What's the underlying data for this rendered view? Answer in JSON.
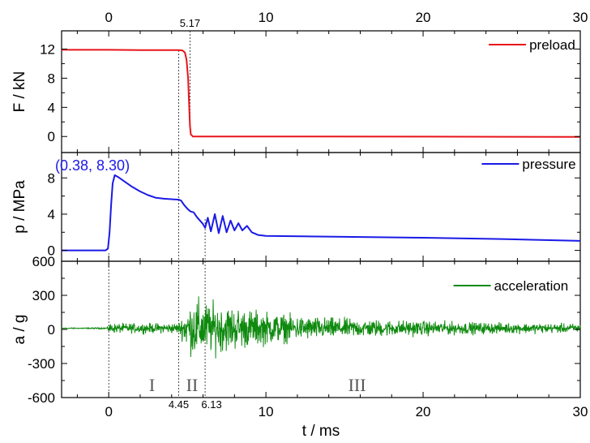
{
  "chart_data": {
    "type": "line",
    "x_axis": {
      "label": "t / ms",
      "range": [
        -3,
        30
      ],
      "bottom_ticks": [
        "0",
        "10",
        "20",
        "30"
      ],
      "top_ticks": [
        "0",
        "10",
        "20",
        "30"
      ],
      "tick_values": [
        0,
        10,
        20,
        30
      ]
    },
    "panels": [
      {
        "id": "preload",
        "ylabel": "F / kN",
        "ylim": [
          -2.2,
          14.5
        ],
        "yticks": [
          0,
          4,
          8,
          12
        ],
        "ytick_labels": [
          "0",
          "4",
          "8",
          "12"
        ],
        "legend": "preload",
        "color": "#e8141a",
        "series": {
          "name": "preload",
          "points": [
            [
              -3,
              11.9
            ],
            [
              0,
              11.9
            ],
            [
              2,
              11.85
            ],
            [
              4.45,
              11.85
            ],
            [
              4.7,
              11.8
            ],
            [
              4.85,
              11.5
            ],
            [
              4.95,
              10.5
            ],
            [
              5.05,
              8
            ],
            [
              5.12,
              4
            ],
            [
              5.17,
              1.5
            ],
            [
              5.22,
              0.3
            ],
            [
              5.35,
              0
            ],
            [
              6,
              0
            ],
            [
              10,
              0
            ],
            [
              20,
              -0.02
            ],
            [
              30,
              -0.05
            ]
          ]
        }
      },
      {
        "id": "pressure",
        "ylabel": "p / MPa",
        "ylim": [
          -1.2,
          10.8
        ],
        "yticks": [
          0,
          4,
          8
        ],
        "ytick_labels": [
          "0",
          "4",
          "8"
        ],
        "legend": "pressure",
        "color": "#1a1ae6",
        "annotation": "(0.38, 8.30)",
        "series": {
          "name": "pressure",
          "points": [
            [
              -3,
              0
            ],
            [
              -0.2,
              0
            ],
            [
              -0.05,
              0.2
            ],
            [
              0.05,
              2
            ],
            [
              0.15,
              5
            ],
            [
              0.25,
              7.4
            ],
            [
              0.38,
              8.3
            ],
            [
              0.6,
              8.1
            ],
            [
              1,
              7.6
            ],
            [
              1.5,
              7.0
            ],
            [
              2,
              6.5
            ],
            [
              2.5,
              6.1
            ],
            [
              3,
              5.8
            ],
            [
              3.5,
              5.7
            ],
            [
              4.45,
              5.6
            ],
            [
              4.6,
              5.5
            ],
            [
              4.8,
              5.0
            ],
            [
              5.0,
              4.6
            ],
            [
              5.2,
              4.3
            ],
            [
              5.4,
              4.2
            ],
            [
              5.6,
              3.7
            ],
            [
              5.8,
              3.3
            ],
            [
              6.0,
              2.9
            ],
            [
              6.13,
              2.5
            ],
            [
              6.3,
              3.6
            ],
            [
              6.5,
              2.1
            ],
            [
              6.75,
              4.0
            ],
            [
              7.0,
              1.9
            ],
            [
              7.25,
              3.8
            ],
            [
              7.5,
              2.0
            ],
            [
              7.75,
              3.3
            ],
            [
              8.0,
              2.2
            ],
            [
              8.25,
              3.0
            ],
            [
              8.5,
              2.2
            ],
            [
              8.8,
              2.7
            ],
            [
              9.1,
              2.0
            ],
            [
              9.5,
              1.7
            ],
            [
              10,
              1.6
            ],
            [
              15,
              1.5
            ],
            [
              20,
              1.4
            ],
            [
              25,
              1.25
            ],
            [
              30,
              1.05
            ]
          ]
        }
      },
      {
        "id": "acceleration",
        "ylabel": "a / g",
        "ylim": [
          -600,
          600
        ],
        "yticks": [
          -600,
          -300,
          0,
          300,
          600
        ],
        "ytick_labels": [
          "-600",
          "-300",
          "0",
          "300",
          "600"
        ],
        "legend": "acceleration",
        "color": "#0f8a0f",
        "series": {
          "name": "acceleration",
          "description_of_signal": "noisy vibration signal",
          "envelope": [
            [
              -3,
              6
            ],
            [
              -0.1,
              8
            ],
            [
              0,
              60
            ],
            [
              3,
              60
            ],
            [
              4.45,
              65
            ],
            [
              5.0,
              260
            ],
            [
              5.5,
              380
            ],
            [
              6.0,
              330
            ],
            [
              7,
              300
            ],
            [
              9,
              230
            ],
            [
              12,
              150
            ],
            [
              16,
              110
            ],
            [
              20,
              90
            ],
            [
              25,
              65
            ],
            [
              30,
              55
            ]
          ],
          "offset": 10
        }
      }
    ],
    "markers": [
      {
        "x": 0,
        "label": ""
      },
      {
        "x": 4.45,
        "label": "4.45"
      },
      {
        "x": 5.17,
        "label": "5.17"
      },
      {
        "x": 6.13,
        "label": "6.13"
      }
    ],
    "regions": [
      {
        "label": "I",
        "x": 2.75
      },
      {
        "label": "II",
        "x": 5.3
      },
      {
        "label": "III",
        "x": 15.8
      }
    ]
  }
}
